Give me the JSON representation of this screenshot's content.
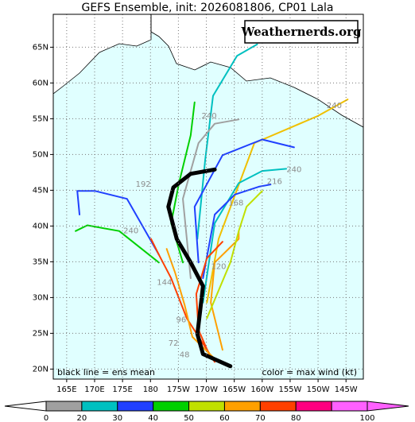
{
  "title": "GEFS Ensemble, init: 2026081806, CP01 Lala",
  "watermark": "Weathernerds.org",
  "mean_note": "black line = ens mean",
  "color_note": "color = max wind (kt)",
  "map": {
    "lonlim": [
      162.6,
      218.1
    ],
    "latlim": [
      18.6,
      69.6
    ],
    "lonticks": [
      {
        "value": 165,
        "label": "165E"
      },
      {
        "value": 170,
        "label": "170E"
      },
      {
        "value": 175,
        "label": "175E"
      },
      180,
      {
        "value": 185,
        "label": "175W"
      },
      {
        "value": 190,
        "label": "170W"
      },
      {
        "value": 195,
        "label": "165W"
      },
      {
        "value": 200,
        "label": "160W"
      },
      {
        "value": 205,
        "label": "155W"
      },
      {
        "value": 210,
        "label": "150W"
      },
      {
        "value": 215,
        "label": "145W"
      }
    ],
    "latticks": [
      {
        "value": 20,
        "label": "20N"
      },
      {
        "value": 25,
        "label": "25N"
      },
      {
        "value": 30,
        "label": "30N"
      },
      {
        "value": 35,
        "label": "35N"
      },
      {
        "value": 40,
        "label": "40N"
      },
      {
        "value": 45,
        "label": "45N"
      },
      {
        "value": 50,
        "label": "50N"
      },
      {
        "value": 55,
        "label": "55N"
      },
      {
        "value": 60,
        "label": "60N"
      },
      {
        "value": 65,
        "label": "65N"
      }
    ],
    "tracks": [
      {
        "color": "#00c0c0",
        "lon": [
          188.4,
          189.8,
          191.2,
          195.5,
          199.1
        ],
        "lat": [
          38.2,
          49.3,
          58.2,
          63.8,
          65.4
        ]
      },
      {
        "color": "#f0c000",
        "lon": [
          190.1,
          192.2,
          198.6,
          210,
          215.3
        ],
        "lat": [
          29.3,
          38.2,
          51.6,
          55.4,
          57.7
        ]
      },
      {
        "color": "#2040ff",
        "lon": [
          188.6,
          187.9,
          192.9,
          200,
          205.7
        ],
        "lat": [
          34.9,
          42.7,
          49.9,
          52.1,
          51
        ]
      },
      {
        "color": "#00c0c0",
        "lon": [
          189.4,
          191.5,
          195.8,
          200,
          204.3
        ],
        "lat": [
          29.3,
          40.4,
          46,
          47.7,
          48
        ]
      },
      {
        "color": "#2040ff",
        "lon": [
          181.5,
          175.8,
          170.1,
          166.9,
          167.3
        ],
        "lat": [
          36,
          43.8,
          44.9,
          44.9,
          41.6
        ]
      },
      {
        "color": "#00d000",
        "lon": [
          181.5,
          174.4,
          168.7,
          166.6
        ],
        "lat": [
          34.9,
          39.3,
          40.1,
          39.3
        ]
      },
      {
        "color": "#00d000",
        "lon": [
          185.8,
          183.7,
          185.1,
          187.2,
          187.9
        ],
        "lat": [
          34.9,
          40.4,
          46,
          52.7,
          57.3
        ]
      },
      {
        "color": "#a0a0a0",
        "lon": [
          187.2,
          185.8,
          188.6,
          191.5,
          195.8
        ],
        "lat": [
          32.7,
          43.8,
          51.6,
          54.3,
          54.9
        ]
      },
      {
        "color": "#ffa000",
        "lon": [
          192.9,
          190.8,
          191.5,
          195.8,
          195.8
        ],
        "lat": [
          22.7,
          29.3,
          34.9,
          38.2,
          39.3
        ]
      },
      {
        "color": "#ff4000",
        "lon": [
          191.5,
          186.5,
          183.7,
          181.5,
          180.1
        ],
        "lat": [
          21,
          27.1,
          32.7,
          36,
          38.2
        ]
      },
      {
        "color": "#c0e000",
        "lon": [
          190.1,
          194.3,
          195.8,
          197.2,
          200
        ],
        "lat": [
          27.1,
          34.9,
          39.3,
          42.7,
          44.9
        ]
      },
      {
        "color": "#2040ff",
        "lon": [
          189.4,
          191.5,
          195.1,
          199.4,
          201.5
        ],
        "lat": [
          32.7,
          41.6,
          44.4,
          45.5,
          45.8
        ]
      },
      {
        "color": "#ff4000",
        "lon": [
          190.8,
          188.6,
          188.2,
          190.1,
          192.9
        ],
        "lat": [
          21.5,
          25.5,
          30.5,
          35.5,
          37.8
        ]
      },
      {
        "color": "#ffa000",
        "lon": [
          191.8,
          187.5,
          186.1,
          184.4,
          182.9
        ],
        "lat": [
          21.2,
          24.5,
          29,
          33.5,
          36.8
        ]
      }
    ],
    "mean_track": {
      "color": "#000000",
      "lon": [
        194.3,
        189.4,
        188.4,
        188.9,
        189.4,
        187.2,
        184.7,
        183.2,
        184.1,
        187.2,
        191.5
      ],
      "lat": [
        20.4,
        22.1,
        24.9,
        28.2,
        31.6,
        34.9,
        38.2,
        42.7,
        45.4,
        47.3,
        47.9
      ]
    },
    "hour_labels": [
      {
        "text": "240",
        "lon": 212.9,
        "lat": 56.8
      },
      {
        "text": "240",
        "lon": 205.7,
        "lat": 47.9
      },
      {
        "text": "216",
        "lon": 202.2,
        "lat": 46.2
      },
      {
        "text": "192",
        "lon": 178.7,
        "lat": 45.8
      },
      {
        "text": "240",
        "lon": 176.5,
        "lat": 39.3
      },
      {
        "text": "168",
        "lon": 195.3,
        "lat": 43.2
      },
      {
        "text": "240",
        "lon": 190.5,
        "lat": 55.4
      },
      {
        "text": "144",
        "lon": 182.5,
        "lat": 32.1
      },
      {
        "text": "120",
        "lon": 192.2,
        "lat": 34.3
      },
      {
        "text": "96",
        "lon": 185.5,
        "lat": 26.9
      },
      {
        "text": "72",
        "lon": 184.1,
        "lat": 23.6
      },
      {
        "text": "48",
        "lon": 186.1,
        "lat": 22
      }
    ]
  },
  "colorbar": {
    "levels": [
      0,
      20,
      30,
      40,
      50,
      60,
      70,
      80,
      90,
      100
    ],
    "colors": [
      "#a0a0a0",
      "#00c0c0",
      "#2040ff",
      "#00d000",
      "#c0e000",
      "#ffa000",
      "#ff4000",
      "#ff0080",
      "#ff60ff"
    ],
    "under_color": "#ffffff",
    "over_color": "#ff60ff",
    "ticks": [
      0,
      20,
      30,
      40,
      50,
      60,
      70,
      80,
      100
    ]
  }
}
